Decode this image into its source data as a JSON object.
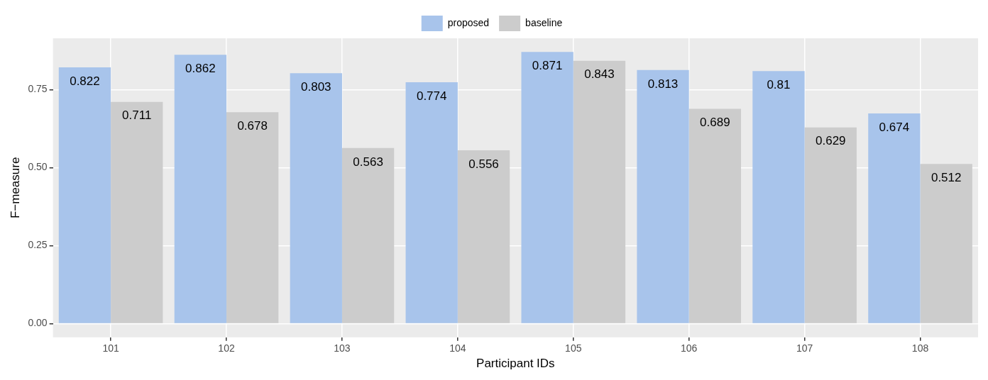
{
  "chart_data": {
    "type": "bar",
    "xlabel": "Participant IDs",
    "ylabel": "F−measure",
    "categories": [
      "101",
      "102",
      "103",
      "104",
      "105",
      "106",
      "107",
      "108"
    ],
    "series": [
      {
        "name": "proposed",
        "color": "#a8c4eb",
        "values": [
          0.822,
          0.862,
          0.803,
          0.774,
          0.871,
          0.813,
          0.81,
          0.674
        ]
      },
      {
        "name": "baseline",
        "color": "#cccccc",
        "values": [
          0.711,
          0.678,
          0.563,
          0.556,
          0.843,
          0.689,
          0.629,
          0.512
        ]
      }
    ],
    "ylim": [
      -0.044,
      0.915
    ],
    "yticks": [
      {
        "value": 0,
        "label": "0.00"
      },
      {
        "value": 0.25,
        "label": "0.25"
      },
      {
        "value": 0.5,
        "label": "0.50"
      },
      {
        "value": 0.75,
        "label": "0.75"
      }
    ],
    "grid": true,
    "legend": "top",
    "data_labels": true
  }
}
